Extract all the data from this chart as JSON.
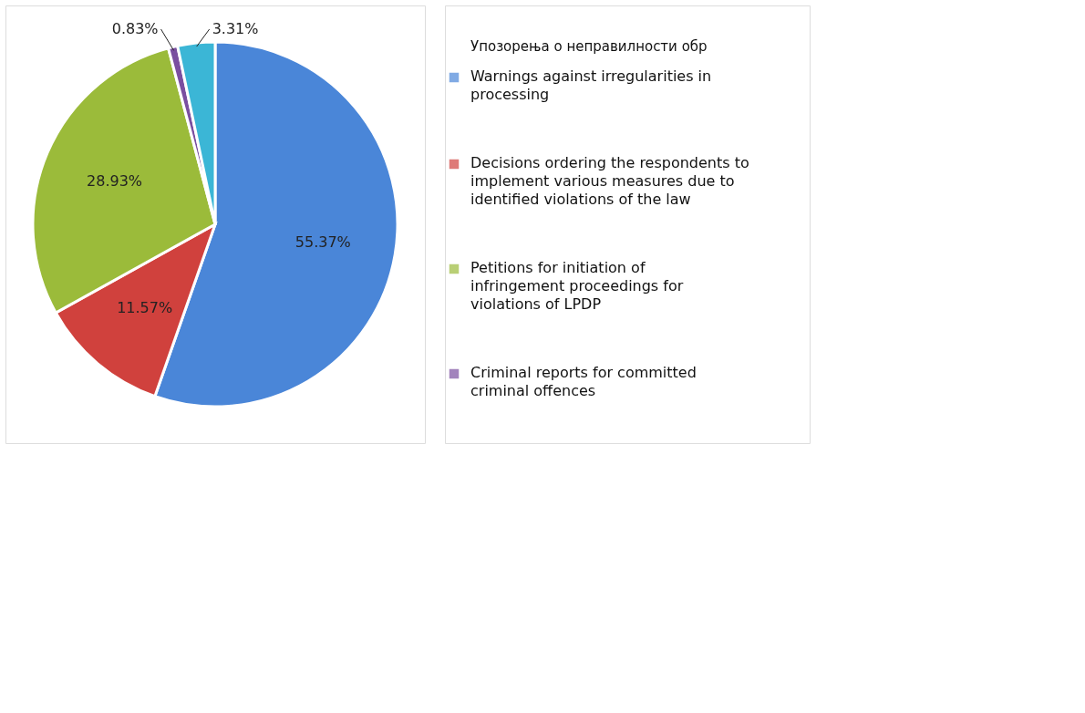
{
  "chart_data": {
    "type": "pie",
    "categories": [
      "Warnings against irregularities in processing",
      "Decisions ordering the respondents to implement various measures due to identified violations of the law",
      "Petitions for initiation of infringement proceedings for violations of LPDP",
      "Criminal reports for committed criminal offences",
      null
    ],
    "values": [
      55.37,
      11.57,
      28.93,
      0.83,
      3.31
    ],
    "colors": [
      "#4a86d8",
      "#d0413d",
      "#9bbb3a",
      "#7a4fa0",
      "#3bb6d6"
    ],
    "value_labels": [
      "55.37%",
      "11.57%",
      "28.93%",
      "0.83%",
      "3.31%"
    ],
    "legend": "right",
    "annotations": [
      "Упозорења о неправилности обр"
    ]
  }
}
